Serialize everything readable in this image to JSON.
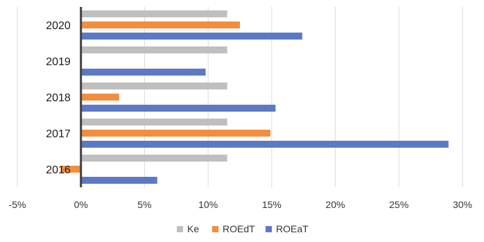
{
  "chart_data": {
    "type": "bar",
    "orientation": "horizontal",
    "categories": [
      "2020",
      "2019",
      "2018",
      "2017",
      "2016"
    ],
    "series": [
      {
        "name": "Ke",
        "color": "#bfbfbf",
        "values": [
          11.5,
          11.5,
          11.5,
          11.5,
          11.5
        ]
      },
      {
        "name": "ROEdT",
        "color": "#f28e3f",
        "values": [
          12.5,
          0,
          3.0,
          14.9,
          -1.6
        ]
      },
      {
        "name": "ROEaT",
        "color": "#5b79c4",
        "values": [
          17.4,
          9.8,
          15.3,
          28.9,
          6.0
        ]
      }
    ],
    "x_ticks": [
      "-5%",
      "0%",
      "5%",
      "10%",
      "15%",
      "20%",
      "25%",
      "30%"
    ],
    "xlim": [
      -5,
      30
    ],
    "grid": true,
    "legend_position": "bottom",
    "legend": [
      "Ke",
      "ROEdT",
      "ROEaT"
    ]
  }
}
